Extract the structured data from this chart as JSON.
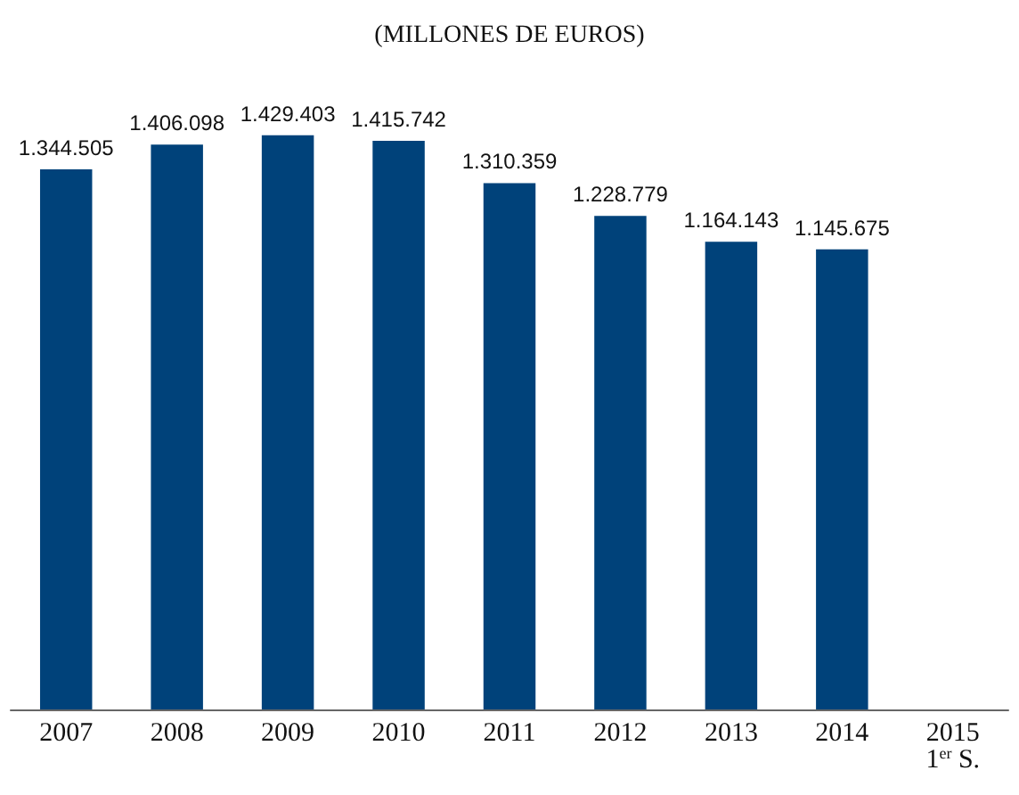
{
  "chart_data": {
    "type": "bar",
    "title": "(MILLONES DE EUROS)",
    "categories": [
      "2007",
      "2008",
      "2009",
      "2010",
      "2011",
      "2012",
      "2013",
      "2014",
      "2015\n1$^{er}$ S."
    ],
    "values": [
      1344505,
      1406098,
      1429403,
      1415742,
      1310359,
      1228779,
      1164143,
      1145675,
      null
    ],
    "value_labels": [
      "1.344.505",
      "1.406.098",
      "1.429.403",
      "1.415.742",
      "1.310.359",
      "1.228.779",
      "1.164.143",
      "1.145.675",
      null
    ],
    "color": "#00427a",
    "grid": false
  }
}
